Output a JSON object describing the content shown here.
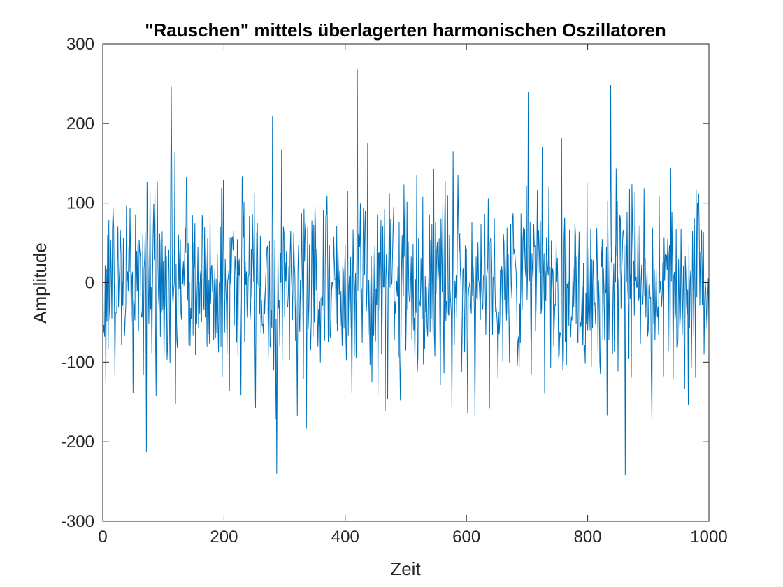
{
  "chart_data": {
    "type": "line",
    "title": "\"Rauschen\" mittels überlagerten harmonischen Oszillatoren",
    "xlabel": "Zeit",
    "ylabel": "Amplitude",
    "xlim": [
      0,
      1000
    ],
    "ylim": [
      -300,
      300
    ],
    "xticks": [
      0,
      200,
      400,
      600,
      800,
      1000
    ],
    "xtick_labels": [
      "0",
      "200",
      "400",
      "600",
      "800",
      "1000"
    ],
    "yticks": [
      -300,
      -200,
      -100,
      0,
      100,
      200,
      300
    ],
    "ytick_labels": [
      "-300",
      "-200",
      "-100",
      "0",
      "100",
      "200",
      "300"
    ],
    "grid": false,
    "box": true,
    "series_color": "#0072BD",
    "series": [
      {
        "points": 1000,
        "mean": 0,
        "std": 65,
        "min": -242,
        "max": 268,
        "peaks": [
          {
            "x": 113,
            "y": 247
          },
          {
            "x": 420,
            "y": 268
          },
          {
            "x": 702,
            "y": 240
          },
          {
            "x": 838,
            "y": 249
          },
          {
            "x": 287,
            "y": -240
          },
          {
            "x": 862,
            "y": -242
          },
          {
            "x": 72,
            "y": -213
          }
        ]
      }
    ]
  }
}
